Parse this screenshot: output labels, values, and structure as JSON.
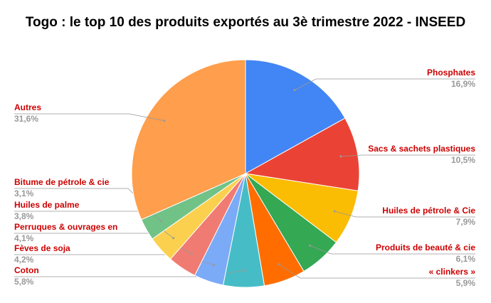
{
  "chart_data": {
    "type": "pie",
    "title": "Togo : le top 10 des produits exportés au 3è trimestre 2022 - INSEED",
    "categories": [
      "Phosphates",
      "Sacs & sachets plastiques",
      "Huiles de pétrole & Cie",
      "Produits de beauté & cie",
      "« clinkers »",
      "Coton",
      "Fèves de soja",
      "Perruques & ouvrages en",
      "Huiles de palme",
      "Bitume de pétrole & cie",
      "Autres"
    ],
    "values": [
      16.9,
      10.5,
      7.9,
      6.1,
      5.9,
      5.8,
      4.2,
      4.1,
      3.8,
      3.1,
      31.6
    ],
    "value_labels": [
      "16,9%",
      "10,5%",
      "7,9%",
      "6,1%",
      "5,9%",
      "5,8%",
      "4,2%",
      "4,1%",
      "3,8%",
      "3,1%",
      "31,6%"
    ],
    "colors": [
      "#4285f4",
      "#ea4335",
      "#fbbc04",
      "#34a853",
      "#ff6d01",
      "#46bdc6",
      "#7baaf7",
      "#f07b72",
      "#fcd04f",
      "#71c287",
      "#ff9e4c"
    ]
  }
}
